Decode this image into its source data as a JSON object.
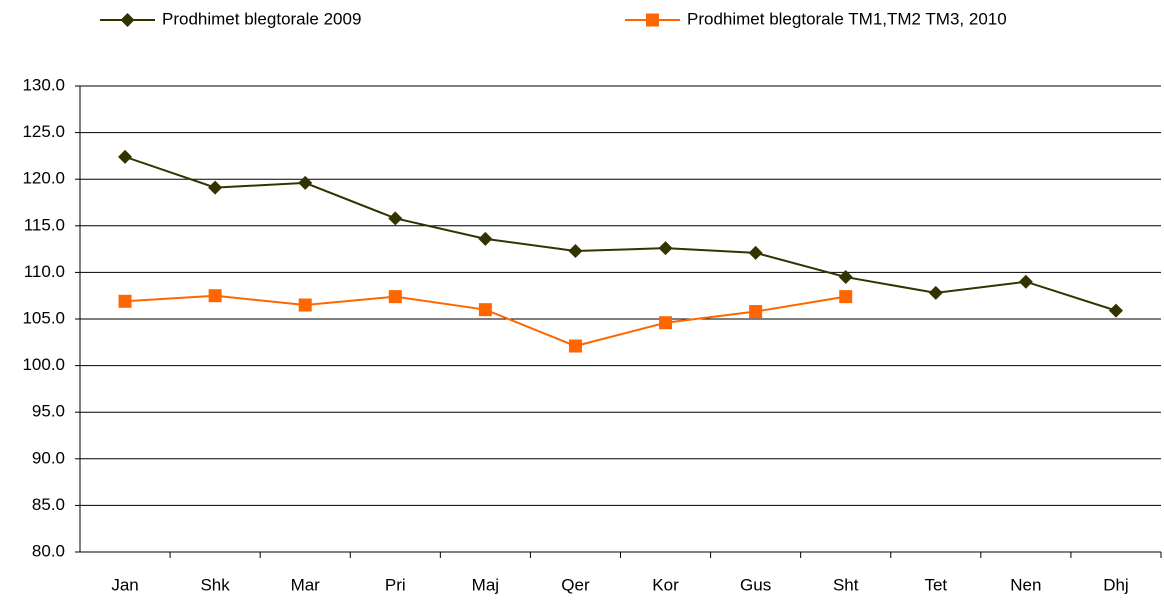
{
  "chart_data": {
    "type": "line",
    "categories": [
      "Jan",
      "Shk",
      "Mar",
      "Pri",
      "Maj",
      "Qer",
      "Kor",
      "Gus",
      "Sht",
      "Tet",
      "Nen",
      "Dhj"
    ],
    "series": [
      {
        "name": "Prodhimet blegtorale 2009",
        "color": "#333300",
        "marker": "diamond",
        "values": [
          122.4,
          119.1,
          119.6,
          115.8,
          113.6,
          112.3,
          112.6,
          112.1,
          109.5,
          107.8,
          109.0,
          105.9
        ]
      },
      {
        "name": "Prodhimet blegtorale TM1,TM2 TM3, 2010",
        "color": "#ff6600",
        "marker": "square",
        "values": [
          106.9,
          107.5,
          106.5,
          107.4,
          106.0,
          102.1,
          104.6,
          105.8,
          107.4,
          null,
          null,
          null
        ]
      }
    ],
    "ylim": [
      80,
      130
    ],
    "yticks": [
      {
        "value": 80,
        "label": "80.0"
      },
      {
        "value": 85,
        "label": "85.0"
      },
      {
        "value": 90,
        "label": "90.0"
      },
      {
        "value": 95,
        "label": "95.0"
      },
      {
        "value": 100,
        "label": "100.0"
      },
      {
        "value": 105,
        "label": "105.0"
      },
      {
        "value": 110,
        "label": "110.0"
      },
      {
        "value": 115,
        "label": "115.0"
      },
      {
        "value": 120,
        "label": "120.0"
      },
      {
        "value": 125,
        "label": "125.0"
      },
      {
        "value": 130,
        "label": "130.0"
      }
    ],
    "grid": true,
    "legend": "top"
  }
}
